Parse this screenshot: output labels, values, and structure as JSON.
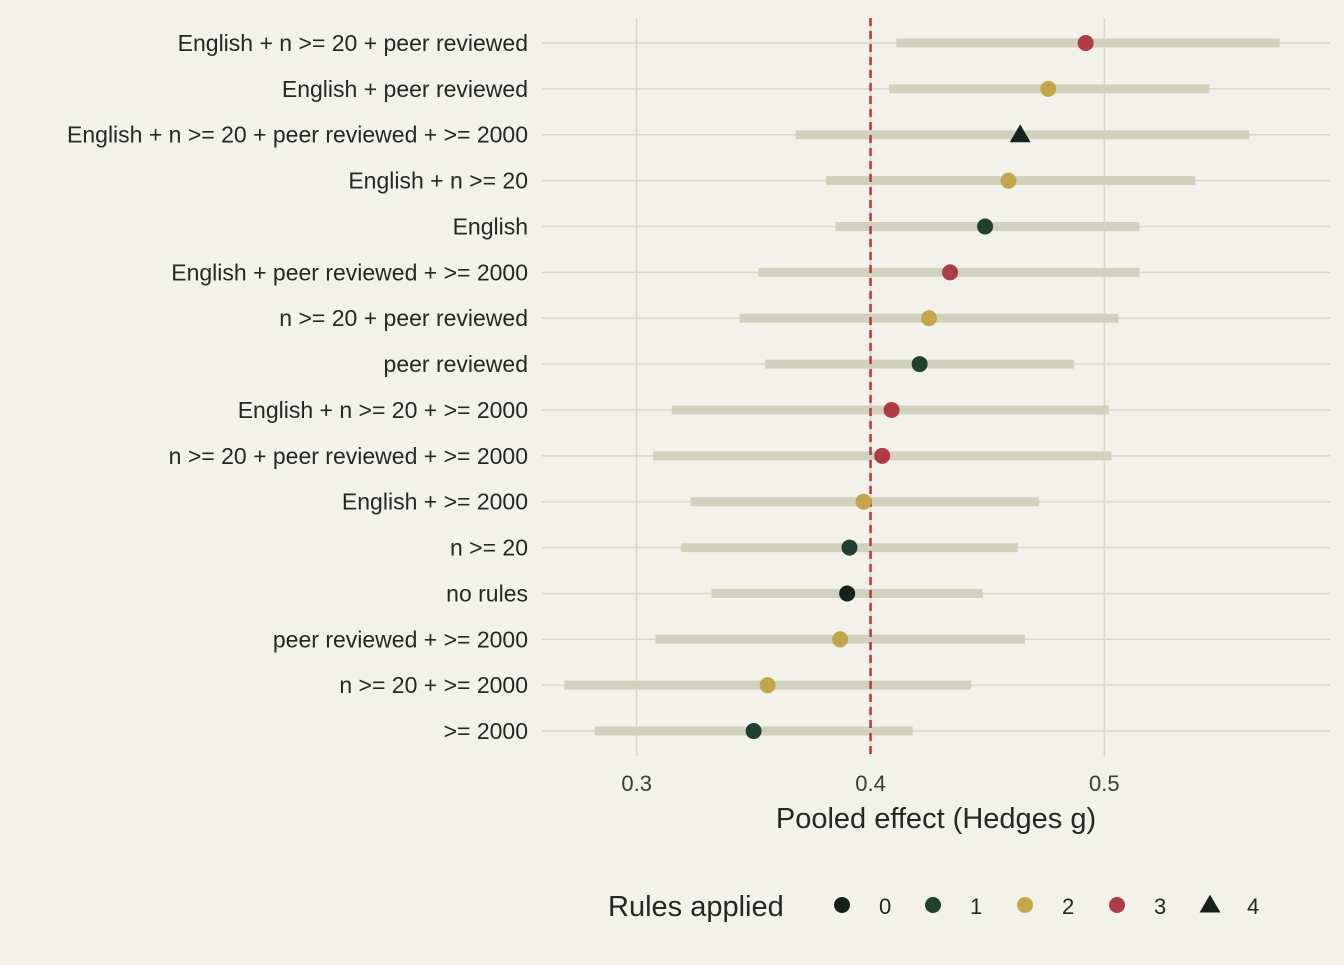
{
  "chart_data": {
    "type": "scatter",
    "subtype": "dot-and-interval (forest) plot",
    "title": "",
    "xlabel": "Pooled effect (Hedges g)",
    "ylabel": "",
    "xlim": [
      0.2595,
      0.5965
    ],
    "xticks": [
      0.3,
      0.4,
      0.5
    ],
    "xtick_labels": [
      "0.3",
      "0.4",
      "0.5"
    ],
    "reference_line": {
      "x": 0.4,
      "style": "dashed",
      "color": "#b5373d"
    },
    "grid": "major gridlines on both axes",
    "legend": {
      "title": "Rules applied",
      "position": "bottom",
      "entries": [
        {
          "label": "0",
          "color": "#16211a",
          "shape": "circle"
        },
        {
          "label": "1",
          "color": "#214130",
          "shape": "circle"
        },
        {
          "label": "2",
          "color": "#c4a548",
          "shape": "circle"
        },
        {
          "label": "3",
          "color": "#b13b42",
          "shape": "circle"
        },
        {
          "label": "4",
          "color": "#16211a",
          "shape": "triangle"
        }
      ]
    },
    "interval_color": "#d1d2bd",
    "rows": [
      {
        "label": "English + n >= 20 + peer reviewed",
        "estimate": 0.492,
        "lower": 0.411,
        "upper": 0.575,
        "rules": 3
      },
      {
        "label": "English + peer reviewed",
        "estimate": 0.476,
        "lower": 0.408,
        "upper": 0.545,
        "rules": 2
      },
      {
        "label": "English + n >= 20 + peer reviewed + >= 2000",
        "estimate": 0.464,
        "lower": 0.368,
        "upper": 0.562,
        "rules": 4
      },
      {
        "label": "English + n >= 20",
        "estimate": 0.459,
        "lower": 0.381,
        "upper": 0.539,
        "rules": 2
      },
      {
        "label": "English",
        "estimate": 0.449,
        "lower": 0.385,
        "upper": 0.515,
        "rules": 1
      },
      {
        "label": "English + peer reviewed + >= 2000",
        "estimate": 0.434,
        "lower": 0.352,
        "upper": 0.515,
        "rules": 3
      },
      {
        "label": "n >= 20 + peer reviewed",
        "estimate": 0.425,
        "lower": 0.344,
        "upper": 0.506,
        "rules": 2
      },
      {
        "label": "peer reviewed",
        "estimate": 0.421,
        "lower": 0.355,
        "upper": 0.487,
        "rules": 1
      },
      {
        "label": "English + n >= 20 + >= 2000",
        "estimate": 0.409,
        "lower": 0.315,
        "upper": 0.502,
        "rules": 3
      },
      {
        "label": "n >= 20 + peer reviewed + >= 2000",
        "estimate": 0.405,
        "lower": 0.307,
        "upper": 0.503,
        "rules": 3
      },
      {
        "label": "English + >= 2000",
        "estimate": 0.397,
        "lower": 0.323,
        "upper": 0.472,
        "rules": 2
      },
      {
        "label": "n >= 20",
        "estimate": 0.391,
        "lower": 0.319,
        "upper": 0.463,
        "rules": 1
      },
      {
        "label": "no rules",
        "estimate": 0.39,
        "lower": 0.332,
        "upper": 0.448,
        "rules": 0
      },
      {
        "label": "peer reviewed + >= 2000",
        "estimate": 0.387,
        "lower": 0.308,
        "upper": 0.466,
        "rules": 2
      },
      {
        "label": "n >= 20 + >= 2000",
        "estimate": 0.356,
        "lower": 0.269,
        "upper": 0.443,
        "rules": 2
      },
      {
        "label": ">= 2000",
        "estimate": 0.35,
        "lower": 0.282,
        "upper": 0.418,
        "rules": 1
      }
    ]
  }
}
